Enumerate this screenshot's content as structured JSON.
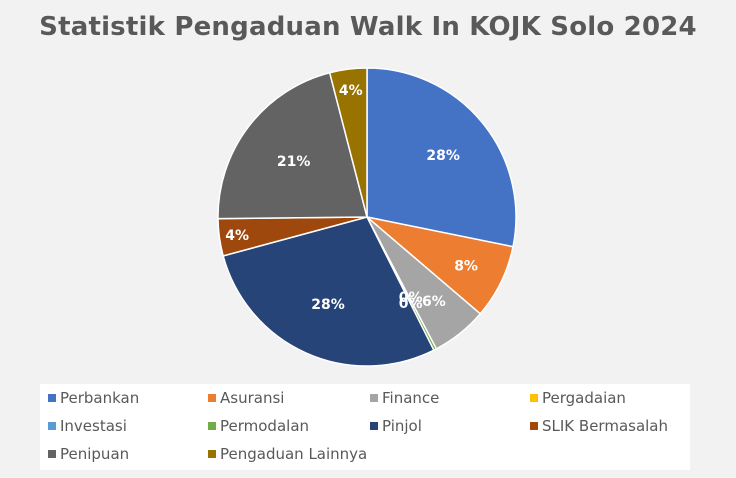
{
  "chart_data": {
    "type": "pie",
    "title": "Statistik Pengaduan Walk In KOJK Solo 2024",
    "legend_position": "bottom",
    "categories": [
      "Perbankan",
      "Asuransi",
      "Finance",
      "Pergadaian",
      "Investasi",
      "Permodalan",
      "Pinjol",
      "SLIK Bermasalah",
      "Penipuan",
      "Pengaduan Lainnya"
    ],
    "values": [
      28,
      8,
      6,
      0,
      0,
      0.3,
      28,
      4,
      21,
      4
    ],
    "data_labels": [
      "28%",
      "8%",
      "6%",
      "0%",
      "0%",
      "",
      "28%",
      "4%",
      "21%",
      "4%"
    ],
    "colors": [
      "#4472c4",
      "#ed7d31",
      "#a5a5a5",
      "#ffc000",
      "#5b9bd5",
      "#70ad47",
      "#264478",
      "#9e480e",
      "#636363",
      "#997300"
    ]
  }
}
